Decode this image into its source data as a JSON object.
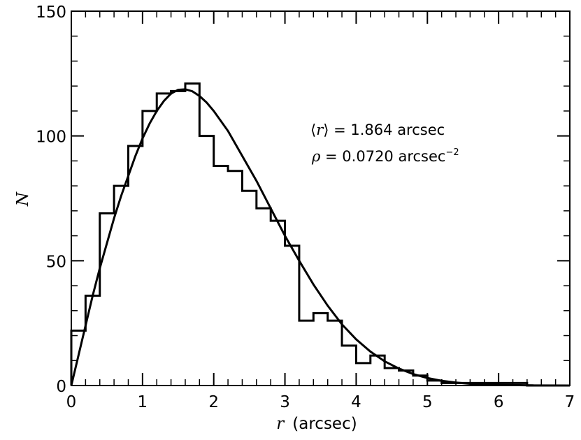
{
  "chart_data": {
    "type": "bar",
    "histogram": {
      "bin_edges": [
        0,
        0.2,
        0.4,
        0.6,
        0.8,
        1.0,
        1.2,
        1.4,
        1.6,
        1.8,
        2.0,
        2.2,
        2.4,
        2.6,
        2.8,
        3.0,
        3.2,
        3.4,
        3.6,
        3.8,
        4.0,
        4.2,
        4.4,
        4.6,
        4.8,
        5.0,
        5.2,
        5.4,
        5.6,
        5.8,
        6.0,
        6.2,
        6.4,
        6.6,
        6.8,
        7.0
      ],
      "counts": [
        22,
        36,
        69,
        80,
        96,
        110,
        117,
        118,
        121,
        100,
        88,
        86,
        78,
        71,
        66,
        56,
        26,
        29,
        26,
        16,
        9,
        12,
        7,
        6,
        4,
        2,
        1,
        1,
        1,
        1,
        1,
        1,
        0,
        0,
        0
      ]
    },
    "curve": {
      "x": [
        0,
        0.1,
        0.2,
        0.3,
        0.4,
        0.5,
        0.6,
        0.7,
        0.8,
        0.9,
        1.0,
        1.1,
        1.2,
        1.3,
        1.4,
        1.5,
        1.6,
        1.7,
        1.8,
        1.9,
        2.0,
        2.2,
        2.4,
        2.6,
        2.8,
        3.0,
        3.2,
        3.4,
        3.6,
        3.8,
        4.0,
        4.2,
        4.4,
        4.6,
        4.8,
        5.0,
        5.2,
        5.4,
        5.6,
        5.8,
        6.0,
        6.5,
        7.0
      ],
      "y": [
        0,
        12,
        24,
        36,
        47,
        57,
        67,
        76,
        84,
        92,
        99,
        105,
        110,
        114,
        117,
        118.5,
        118.7,
        117.9,
        116,
        113.4,
        110,
        102,
        92,
        82,
        71,
        60,
        50,
        40.5,
        32,
        24.5,
        18.5,
        13.6,
        9.7,
        6.8,
        4.6,
        3.0,
        1.9,
        1.2,
        0.7,
        0.4,
        0.25,
        0.05,
        0
      ]
    },
    "xlabel_var": "r",
    "xlabel_unit": "(arcsec)",
    "ylabel": "N",
    "xlim": [
      0,
      7
    ],
    "ylim": [
      0,
      150
    ],
    "x_ticks": [
      0,
      1,
      2,
      3,
      4,
      5,
      6,
      7
    ],
    "y_ticks": [
      0,
      50,
      100,
      150
    ],
    "x_minor_step": 0.2,
    "y_minor_step": 10,
    "annotations": {
      "line1_open": "⟨",
      "line1_var": "r",
      "line1_close": "⟩",
      "line1_rest": " = 1.864 arcsec",
      "line2_var": "ρ",
      "line2_rest": " = 0.0720 arcsec",
      "line2_sup": "−2"
    },
    "grid": false,
    "legend": "none"
  }
}
